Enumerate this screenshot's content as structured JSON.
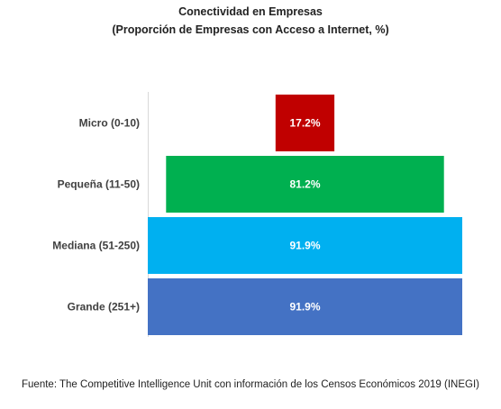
{
  "chart_data": {
    "type": "bar",
    "orientation": "horizontal-centered",
    "title": "Conectividad en Empresas",
    "subtitle": "(Proporción de Empresas con Acceso a Internet, %)",
    "categories": [
      "Micro (0-10)",
      "Pequeña (11-50)",
      "Mediana (51-250)",
      "Grande (251+)"
    ],
    "values": [
      17.2,
      81.2,
      91.9,
      91.9
    ],
    "data_labels": [
      "17.2%",
      "81.2%",
      "91.9%",
      "91.9%"
    ],
    "colors": [
      "#c00000",
      "#00b050",
      "#00b0f0",
      "#4472c4"
    ],
    "xlim": [
      0,
      91.9
    ],
    "grid": false,
    "legend": "none"
  },
  "footer": {
    "source": "Fuente: The Competitive Intelligence Unit con información de los Censos Económicos 2019 (INEGI)"
  }
}
